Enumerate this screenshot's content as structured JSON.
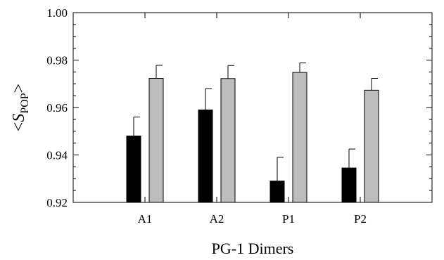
{
  "chart_data": {
    "type": "bar",
    "categories": [
      "A1",
      "A2",
      "P1",
      "P2"
    ],
    "series": [
      {
        "color": "#000000",
        "values": [
          0.948,
          0.959,
          0.929,
          0.9345
        ],
        "errors": [
          0.008,
          0.009,
          0.01,
          0.008
        ]
      },
      {
        "color": "#bdbdbd",
        "values": [
          0.9723,
          0.9722,
          0.9748,
          0.9673
        ],
        "errors": [
          0.0055,
          0.0055,
          0.004,
          0.005
        ]
      }
    ],
    "xlabel": "PG-1 Dimers",
    "ylabel": {
      "prefix": "<",
      "symbol": "S",
      "subscript": "POP",
      "suffix": ">"
    },
    "ylim": [
      0.92,
      1.0
    ],
    "yticks": [
      "0.92",
      "0.94",
      "0.96",
      "0.98",
      "1.00"
    ],
    "grid": false
  }
}
